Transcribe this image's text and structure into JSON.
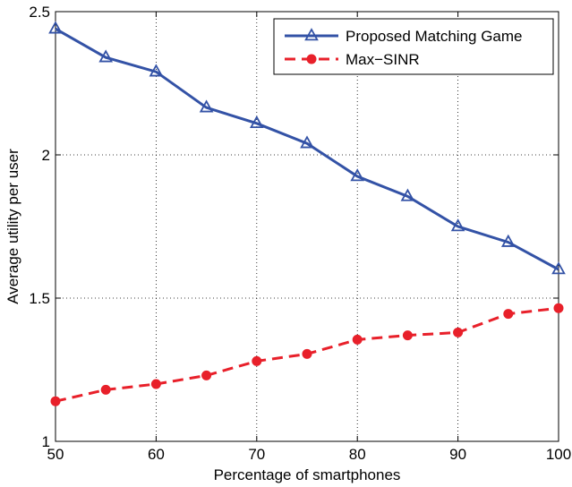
{
  "chart_data": {
    "type": "line",
    "title": "",
    "xlabel": "Percentage of smartphones",
    "ylabel": "Average utility per user",
    "x": [
      50,
      55,
      60,
      65,
      70,
      75,
      80,
      85,
      90,
      95,
      100
    ],
    "xlim": [
      50,
      100
    ],
    "ylim": [
      1,
      2.5
    ],
    "xticks": [
      50,
      60,
      70,
      80,
      90,
      100
    ],
    "yticks": [
      1,
      1.5,
      2,
      2.5
    ],
    "grid": true,
    "legend_position": "top-right",
    "series": [
      {
        "name": "Proposed Matching Game",
        "values": [
          2.44,
          2.34,
          2.29,
          2.165,
          2.11,
          2.04,
          1.925,
          1.855,
          1.75,
          1.695,
          1.6
        ],
        "color": "#3352a6",
        "line_style": "solid",
        "marker": "triangle"
      },
      {
        "name": "Max−SINR",
        "values": [
          1.14,
          1.18,
          1.2,
          1.23,
          1.28,
          1.305,
          1.355,
          1.37,
          1.38,
          1.445,
          1.465
        ],
        "color": "#e8202a",
        "line_style": "dashed",
        "marker": "circle"
      }
    ]
  }
}
